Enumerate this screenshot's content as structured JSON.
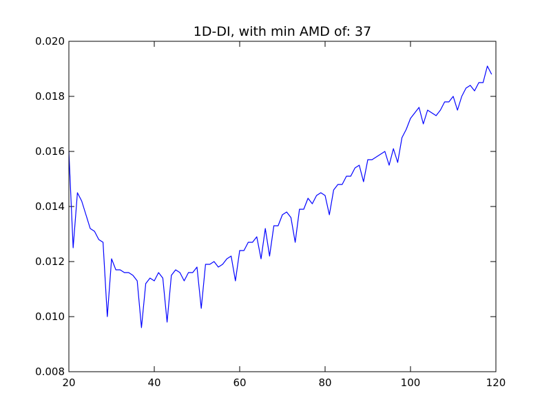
{
  "chart_data": {
    "type": "line",
    "title": "1D-DI, with min AMD of: 37",
    "xlabel": "",
    "ylabel": "",
    "xlim": [
      20,
      120
    ],
    "ylim": [
      0.008,
      0.02
    ],
    "x_ticks": [
      20,
      40,
      60,
      80,
      100,
      120
    ],
    "x_tick_labels": [
      "20",
      "40",
      "60",
      "80",
      "100",
      "120"
    ],
    "y_ticks": [
      0.008,
      0.01,
      0.012,
      0.014,
      0.016,
      0.018,
      0.02
    ],
    "y_tick_labels": [
      "0.008",
      "0.010",
      "0.012",
      "0.014",
      "0.016",
      "0.018",
      "0.020"
    ],
    "grid": false,
    "line_color": "#0000ff",
    "series": [
      {
        "x": [
          20,
          21,
          22,
          23,
          24,
          25,
          26,
          27,
          28,
          29,
          30,
          31,
          32,
          33,
          34,
          35,
          36,
          37,
          38,
          39,
          40,
          41,
          42,
          43,
          44,
          45,
          46,
          47,
          48,
          49,
          50,
          51,
          52,
          53,
          54,
          55,
          56,
          57,
          58,
          59,
          60,
          61,
          62,
          63,
          64,
          65,
          66,
          67,
          68,
          69,
          70,
          71,
          72,
          73,
          74,
          75,
          76,
          77,
          78,
          79,
          80,
          81,
          82,
          83,
          84,
          85,
          86,
          87,
          88,
          89,
          90,
          91,
          92,
          93,
          94,
          95,
          96,
          97,
          98,
          99,
          100,
          101,
          102,
          103,
          104,
          105,
          106,
          107,
          108,
          109,
          110,
          111,
          112,
          113,
          114,
          115,
          116,
          117,
          118,
          119
        ],
        "y": [
          0.016,
          0.0125,
          0.0145,
          0.0142,
          0.0137,
          0.0132,
          0.0131,
          0.0128,
          0.0127,
          0.01,
          0.0121,
          0.0117,
          0.0117,
          0.0116,
          0.0116,
          0.0115,
          0.0113,
          0.0096,
          0.0112,
          0.0114,
          0.0113,
          0.0116,
          0.0114,
          0.0098,
          0.0115,
          0.0117,
          0.0116,
          0.0113,
          0.0116,
          0.0116,
          0.0118,
          0.0103,
          0.0119,
          0.0119,
          0.012,
          0.0118,
          0.0119,
          0.0121,
          0.0122,
          0.0113,
          0.0124,
          0.0124,
          0.0127,
          0.0127,
          0.0129,
          0.0121,
          0.0132,
          0.0122,
          0.0133,
          0.0133,
          0.0137,
          0.0138,
          0.0136,
          0.0127,
          0.0139,
          0.0139,
          0.0143,
          0.0141,
          0.0144,
          0.0145,
          0.0144,
          0.0137,
          0.0146,
          0.0148,
          0.0148,
          0.0151,
          0.0151,
          0.0154,
          0.0155,
          0.0149,
          0.0157,
          0.0157,
          0.0158,
          0.0159,
          0.016,
          0.0155,
          0.0161,
          0.0156,
          0.0165,
          0.0168,
          0.0172,
          0.0174,
          0.0176,
          0.017,
          0.0175,
          0.0174,
          0.0173,
          0.0175,
          0.0178,
          0.0178,
          0.018,
          0.0175,
          0.018,
          0.0183,
          0.0184,
          0.0182,
          0.0185,
          0.0185,
          0.0191,
          0.0188
        ]
      }
    ]
  }
}
